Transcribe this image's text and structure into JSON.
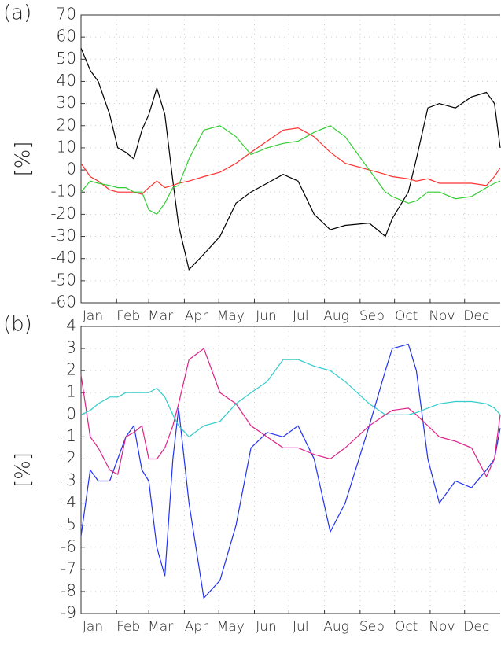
{
  "chart_data": [
    {
      "type": "line",
      "title": "(a)",
      "ylabel": "[%]",
      "x": [
        0,
        8,
        15,
        25,
        32,
        39,
        46,
        53,
        59,
        66,
        73,
        80,
        85,
        94,
        107,
        121,
        135,
        148,
        162,
        176,
        189,
        203,
        217,
        230,
        251,
        265,
        271,
        285,
        292,
        302,
        312,
        326,
        340,
        353,
        360,
        365
      ],
      "xlim": [
        0,
        365
      ],
      "xticks": [
        {
          "value": 0,
          "label": "Jan"
        },
        {
          "value": 31,
          "label": "Feb"
        },
        {
          "value": 59,
          "label": "Mar"
        },
        {
          "value": 90,
          "label": "Apr"
        },
        {
          "value": 120,
          "label": "May"
        },
        {
          "value": 151,
          "label": "Jun"
        },
        {
          "value": 181,
          "label": "Jul"
        },
        {
          "value": 212,
          "label": "Aug"
        },
        {
          "value": 243,
          "label": "Sep"
        },
        {
          "value": 273,
          "label": "Oct"
        },
        {
          "value": 304,
          "label": "Nov"
        },
        {
          "value": 334,
          "label": "Dec"
        }
      ],
      "ylim": [
        -60,
        70
      ],
      "yticks": [
        -60,
        -50,
        -40,
        -30,
        -20,
        -10,
        0,
        10,
        20,
        30,
        40,
        50,
        60,
        70
      ],
      "grid": true,
      "series": [
        {
          "color": "#000000",
          "values": [
            55,
            45,
            40,
            25,
            10,
            8,
            5,
            18,
            25,
            37,
            25,
            -5,
            -25,
            -45,
            -38,
            -30,
            -15,
            -10,
            -6,
            -2,
            -5,
            -20,
            -27,
            -25,
            -24,
            -30,
            -22,
            -10,
            5,
            28,
            30,
            28,
            33,
            35,
            30,
            10
          ]
        },
        {
          "color": "#ff3030",
          "values": [
            3,
            -3,
            -5,
            -9,
            -10,
            -10,
            -10,
            -11,
            -8,
            -5,
            -8,
            -7,
            -6,
            -5,
            -3,
            -1,
            3,
            8,
            13,
            18,
            19,
            15,
            8,
            3,
            0,
            -2,
            -3,
            -4,
            -5,
            -4,
            -6,
            -6,
            -6,
            -7,
            -3,
            1
          ]
        },
        {
          "color": "#33cc33",
          "values": [
            -10,
            -5,
            -6,
            -7,
            -8,
            -8,
            -10,
            -10,
            -18,
            -20,
            -15,
            -8,
            -7,
            5,
            18,
            20,
            15,
            7,
            10,
            12,
            13,
            17,
            20,
            15,
            0,
            -10,
            -12,
            -15,
            -14,
            -10,
            -10,
            -13,
            -12,
            -8,
            -6,
            -5
          ]
        }
      ]
    },
    {
      "type": "line",
      "title": "(b)",
      "ylabel": "[%]",
      "x": [
        0,
        8,
        15,
        25,
        32,
        39,
        46,
        53,
        59,
        66,
        73,
        80,
        85,
        94,
        107,
        121,
        135,
        148,
        162,
        176,
        189,
        203,
        217,
        230,
        251,
        265,
        271,
        285,
        292,
        302,
        312,
        326,
        340,
        353,
        360,
        365
      ],
      "xlim": [
        0,
        365
      ],
      "xticks": [
        {
          "value": 0,
          "label": "Jan"
        },
        {
          "value": 31,
          "label": "Feb"
        },
        {
          "value": 59,
          "label": "Mar"
        },
        {
          "value": 90,
          "label": "Apr"
        },
        {
          "value": 120,
          "label": "May"
        },
        {
          "value": 151,
          "label": "Jun"
        },
        {
          "value": 181,
          "label": "Jul"
        },
        {
          "value": 212,
          "label": "Aug"
        },
        {
          "value": 243,
          "label": "Sep"
        },
        {
          "value": 273,
          "label": "Oct"
        },
        {
          "value": 304,
          "label": "Nov"
        },
        {
          "value": 334,
          "label": "Dec"
        }
      ],
      "ylim": [
        -9,
        4
      ],
      "yticks": [
        -9,
        -8,
        -7,
        -6,
        -5,
        -4,
        -3,
        -2,
        -1,
        0,
        1,
        2,
        3,
        4
      ],
      "grid": true,
      "series": [
        {
          "color": "#2233ee",
          "values": [
            -5.5,
            -2.5,
            -3,
            -3,
            -2,
            -1,
            -0.5,
            -2.5,
            -3,
            -6,
            -7.3,
            -2,
            0.3,
            -4,
            -8.3,
            -7.5,
            -5,
            -1.5,
            -0.8,
            -1,
            -0.5,
            -2,
            -5.3,
            -4,
            -0.5,
            2,
            3,
            3.2,
            2,
            -2,
            -4,
            -3,
            -3.3,
            -2.5,
            -2,
            -0.6
          ]
        },
        {
          "color": "#dd2288",
          "values": [
            1.8,
            -1,
            -1.5,
            -2.5,
            -2.7,
            -1,
            -0.8,
            -0.5,
            -2,
            -2,
            -1.5,
            -0.5,
            0.5,
            2.5,
            3,
            1,
            0.5,
            -0.5,
            -1,
            -1.5,
            -1.5,
            -1.8,
            -2,
            -1.5,
            -0.5,
            0,
            0.2,
            0.3,
            0,
            -0.5,
            -1,
            -1.2,
            -1.5,
            -2.8,
            -2,
            0
          ]
        },
        {
          "color": "#33cccc",
          "values": [
            0,
            0.2,
            0.5,
            0.8,
            0.8,
            1,
            1,
            1,
            1,
            1.2,
            0.8,
            0,
            -0.5,
            -1,
            -0.5,
            -0.3,
            0.5,
            1,
            1.5,
            2.5,
            2.5,
            2.2,
            2,
            1.5,
            0.5,
            0,
            0,
            0,
            0.1,
            0.3,
            0.5,
            0.6,
            0.6,
            0.5,
            0.3,
            0
          ]
        }
      ]
    }
  ]
}
